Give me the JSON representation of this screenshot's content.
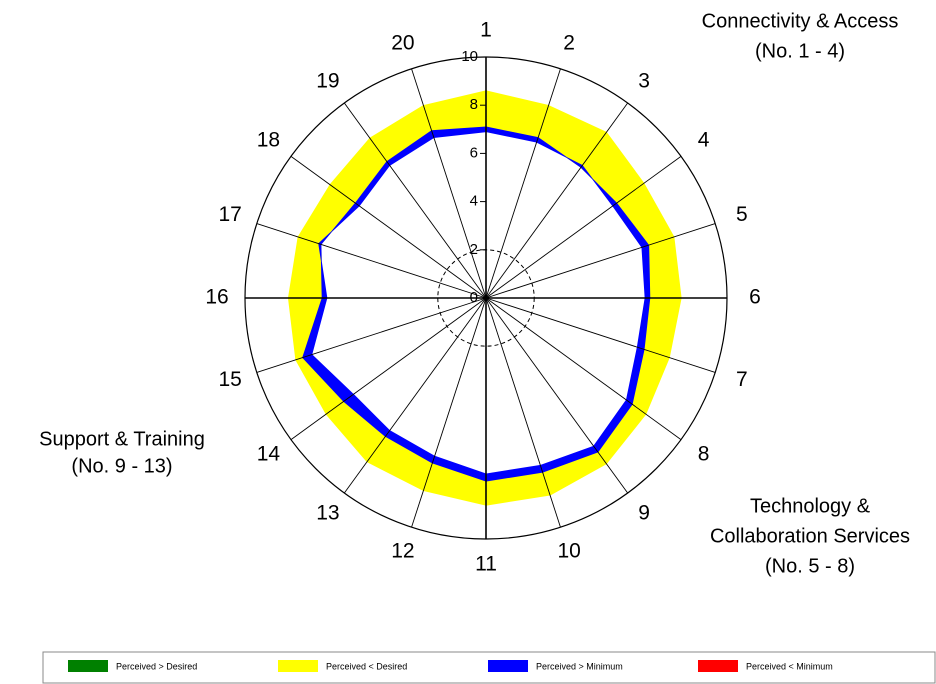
{
  "chart_data": {
    "type": "radar",
    "categories": [
      "1",
      "2",
      "3",
      "4",
      "5",
      "6",
      "7",
      "8",
      "9",
      "10",
      "11",
      "12",
      "13",
      "14",
      "15",
      "16",
      "17",
      "18",
      "19",
      "20"
    ],
    "desired": [
      8.6,
      8.4,
      8.5,
      8.1,
      8.2,
      8.1,
      8.0,
      8.2,
      8.5,
      8.6,
      8.6,
      8.4,
      8.4,
      8.2,
      8.3,
      8.2,
      8.2,
      8.0,
      8.2,
      8.4
    ],
    "perceived": [
      7.1,
      7.0,
      6.7,
      6.7,
      7.1,
      6.8,
      6.9,
      7.5,
      7.9,
      7.6,
      7.6,
      7.2,
      7.1,
      7.3,
      8.0,
      6.8,
      7.2,
      6.7,
      7.0,
      7.3
    ],
    "minimum": [
      6.9,
      6.8,
      6.8,
      6.5,
      6.8,
      6.6,
      6.6,
      7.2,
      7.6,
      7.3,
      7.3,
      6.9,
      6.8,
      6.8,
      7.6,
      6.6,
      7.3,
      6.5,
      6.8,
      7.0
    ],
    "ylim": [
      0,
      10
    ],
    "yticks": [
      0,
      2,
      4,
      6,
      8,
      10
    ],
    "annotations": [
      {
        "lines": [
          "Connectivity & Access",
          "(No. 1 - 4)"
        ]
      },
      {
        "lines": [
          "Technology &",
          "Collaboration Services",
          "(No. 5 - 8)"
        ]
      },
      {
        "lines": [
          "Support & Training",
          "(No. 9 - 13)"
        ]
      }
    ],
    "legend": [
      {
        "label": "Perceived > Desired",
        "color": "#008000"
      },
      {
        "label": "Perceived < Desired",
        "color": "#ffff00"
      },
      {
        "label": "Perceived > Minimum",
        "color": "#0000ff"
      },
      {
        "label": "Perceived < Minimum",
        "color": "#ff0000"
      }
    ]
  }
}
